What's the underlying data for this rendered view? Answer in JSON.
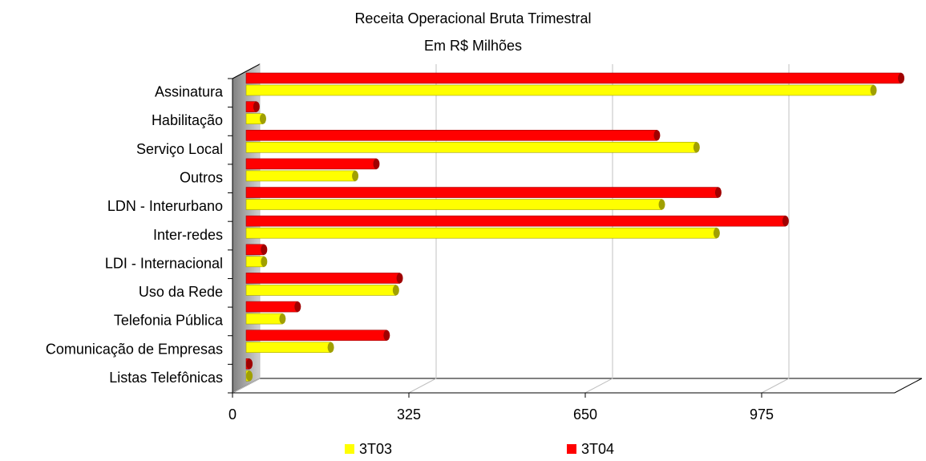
{
  "chart_data": {
    "type": "bar",
    "orientation": "horizontal",
    "three_d": true,
    "title": "Receita Operacional Bruta Trimestral",
    "subtitle": "Em R$ Milhões",
    "categories": [
      "Assinatura",
      "Habilitação",
      "Serviço Local",
      "Outros",
      "LDN - Interurbano",
      "Inter-redes",
      "LDI - Internacional",
      "Uso da Rede",
      "Telefonia Pública",
      "Comunicação de Empresas",
      "Listas Telefônicas"
    ],
    "series": [
      {
        "name": "3T03",
        "color": "#ffff00",
        "values": [
          1156,
          31,
          830,
          201,
          766,
          867,
          33,
          276,
          67,
          156,
          6
        ]
      },
      {
        "name": "3T04",
        "color": "#ff0000",
        "values": [
          1207,
          19,
          757,
          240,
          870,
          994,
          33,
          283,
          95,
          259,
          6
        ]
      }
    ],
    "xlim": [
      0,
      1220
    ],
    "xticks": [
      0,
      325,
      650,
      975
    ],
    "grid": true,
    "legend": "bottom"
  }
}
